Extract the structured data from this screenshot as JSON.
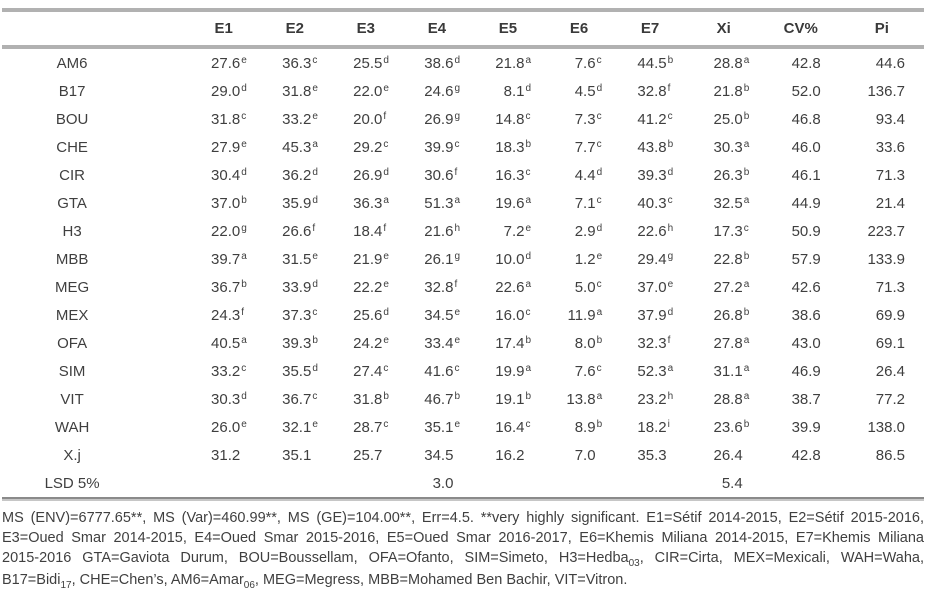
{
  "table": {
    "columns": [
      "E1",
      "E2",
      "E3",
      "E4",
      "E5",
      "E6",
      "E7",
      "Xi",
      "CV%",
      "Pi"
    ],
    "rows": [
      {
        "label": "AM6",
        "cells": [
          [
            "27.6",
            "e"
          ],
          [
            "36.3",
            "c"
          ],
          [
            "25.5",
            "d"
          ],
          [
            "38.6",
            "d"
          ],
          [
            "21.8",
            "a"
          ],
          [
            "7.6",
            "c"
          ],
          [
            "44.5",
            "b"
          ],
          [
            "28.8",
            "a"
          ],
          [
            "42.8",
            ""
          ],
          [
            "44.6",
            ""
          ]
        ]
      },
      {
        "label": "B17",
        "cells": [
          [
            "29.0",
            "d"
          ],
          [
            "31.8",
            "e"
          ],
          [
            "22.0",
            "e"
          ],
          [
            "24.6",
            "g"
          ],
          [
            "8.1",
            "d"
          ],
          [
            "4.5",
            "d"
          ],
          [
            "32.8",
            "f"
          ],
          [
            "21.8",
            "b"
          ],
          [
            "52.0",
            ""
          ],
          [
            "136.7",
            ""
          ]
        ]
      },
      {
        "label": "BOU",
        "cells": [
          [
            "31.8",
            "c"
          ],
          [
            "33.2",
            "e"
          ],
          [
            "20.0",
            "f"
          ],
          [
            "26.9",
            "g"
          ],
          [
            "14.8",
            "c"
          ],
          [
            "7.3",
            "c"
          ],
          [
            "41.2",
            "c"
          ],
          [
            "25.0",
            "b"
          ],
          [
            "46.8",
            ""
          ],
          [
            "93.4",
            ""
          ]
        ]
      },
      {
        "label": "CHE",
        "cells": [
          [
            "27.9",
            "e"
          ],
          [
            "45.3",
            "a"
          ],
          [
            "29.2",
            "c"
          ],
          [
            "39.9",
            "c"
          ],
          [
            "18.3",
            "b"
          ],
          [
            "7.7",
            "c"
          ],
          [
            "43.8",
            "b"
          ],
          [
            "30.3",
            "a"
          ],
          [
            "46.0",
            ""
          ],
          [
            "33.6",
            ""
          ]
        ]
      },
      {
        "label": "CIR",
        "cells": [
          [
            "30.4",
            "d"
          ],
          [
            "36.2",
            "d"
          ],
          [
            "26.9",
            "d"
          ],
          [
            "30.6",
            "f"
          ],
          [
            "16.3",
            "c"
          ],
          [
            "4.4",
            "d"
          ],
          [
            "39.3",
            "d"
          ],
          [
            "26.3",
            "b"
          ],
          [
            "46.1",
            ""
          ],
          [
            "71.3",
            ""
          ]
        ]
      },
      {
        "label": "GTA",
        "cells": [
          [
            "37.0",
            "b"
          ],
          [
            "35.9",
            "d"
          ],
          [
            "36.3",
            "a"
          ],
          [
            "51.3",
            "a"
          ],
          [
            "19.6",
            "a"
          ],
          [
            "7.1",
            "c"
          ],
          [
            "40.3",
            "c"
          ],
          [
            "32.5",
            "a"
          ],
          [
            "44.9",
            ""
          ],
          [
            "21.4",
            ""
          ]
        ]
      },
      {
        "label": "H3",
        "cells": [
          [
            "22.0",
            "g"
          ],
          [
            "26.6",
            "f"
          ],
          [
            "18.4",
            "f"
          ],
          [
            "21.6",
            "h"
          ],
          [
            "7.2",
            "e"
          ],
          [
            "2.9",
            "d"
          ],
          [
            "22.6",
            "h"
          ],
          [
            "17.3",
            "c"
          ],
          [
            "50.9",
            ""
          ],
          [
            "223.7",
            ""
          ]
        ]
      },
      {
        "label": "MBB",
        "cells": [
          [
            "39.7",
            "a"
          ],
          [
            "31.5",
            "e"
          ],
          [
            "21.9",
            "e"
          ],
          [
            "26.1",
            "g"
          ],
          [
            "10.0",
            "d"
          ],
          [
            "1.2",
            "e"
          ],
          [
            "29.4",
            "g"
          ],
          [
            "22.8",
            "b"
          ],
          [
            "57.9",
            ""
          ],
          [
            "133.9",
            ""
          ]
        ]
      },
      {
        "label": "MEG",
        "cells": [
          [
            "36.7",
            "b"
          ],
          [
            "33.9",
            "d"
          ],
          [
            "22.2",
            "e"
          ],
          [
            "32.8",
            "f"
          ],
          [
            "22.6",
            "a"
          ],
          [
            "5.0",
            "c"
          ],
          [
            "37.0",
            "e"
          ],
          [
            "27.2",
            "a"
          ],
          [
            "42.6",
            ""
          ],
          [
            "71.3",
            ""
          ]
        ]
      },
      {
        "label": "MEX",
        "cells": [
          [
            "24.3",
            "f"
          ],
          [
            "37.3",
            "c"
          ],
          [
            "25.6",
            "d"
          ],
          [
            "34.5",
            "e"
          ],
          [
            "16.0",
            "c"
          ],
          [
            "11.9",
            "a"
          ],
          [
            "37.9",
            "d"
          ],
          [
            "26.8",
            "b"
          ],
          [
            "38.6",
            ""
          ],
          [
            "69.9",
            ""
          ]
        ]
      },
      {
        "label": "OFA",
        "cells": [
          [
            "40.5",
            "a"
          ],
          [
            "39.3",
            "b"
          ],
          [
            "24.2",
            "e"
          ],
          [
            "33.4",
            "e"
          ],
          [
            "17.4",
            "b"
          ],
          [
            "8.0",
            "b"
          ],
          [
            "32.3",
            "f"
          ],
          [
            "27.8",
            "a"
          ],
          [
            "43.0",
            ""
          ],
          [
            "69.1",
            ""
          ]
        ]
      },
      {
        "label": "SIM",
        "cells": [
          [
            "33.2",
            "c"
          ],
          [
            "35.5",
            "d"
          ],
          [
            "27.4",
            "c"
          ],
          [
            "41.6",
            "c"
          ],
          [
            "19.9",
            "a"
          ],
          [
            "7.6",
            "c"
          ],
          [
            "52.3",
            "a"
          ],
          [
            "31.1",
            "a"
          ],
          [
            "46.9",
            ""
          ],
          [
            "26.4",
            ""
          ]
        ]
      },
      {
        "label": "VIT",
        "cells": [
          [
            "30.3",
            "d"
          ],
          [
            "36.7",
            "c"
          ],
          [
            "31.8",
            "b"
          ],
          [
            "46.7",
            "b"
          ],
          [
            "19.1",
            "b"
          ],
          [
            "13.8",
            "a"
          ],
          [
            "23.2",
            "h"
          ],
          [
            "28.8",
            "a"
          ],
          [
            "38.7",
            ""
          ],
          [
            "77.2",
            ""
          ]
        ]
      },
      {
        "label": "WAH",
        "cells": [
          [
            "26.0",
            "e"
          ],
          [
            "32.1",
            "e"
          ],
          [
            "28.7",
            "c"
          ],
          [
            "35.1",
            "e"
          ],
          [
            "16.4",
            "c"
          ],
          [
            "8.9",
            "b"
          ],
          [
            "18.2",
            "i"
          ],
          [
            "23.6",
            "b"
          ],
          [
            "39.9",
            ""
          ],
          [
            "138.0",
            ""
          ]
        ]
      },
      {
        "label": "X.j",
        "cells": [
          [
            "31.2",
            ""
          ],
          [
            "35.1",
            ""
          ],
          [
            "25.7",
            ""
          ],
          [
            "34.5",
            ""
          ],
          [
            "16.2",
            ""
          ],
          [
            "7.0",
            ""
          ],
          [
            "35.3",
            ""
          ],
          [
            "26.4",
            ""
          ],
          [
            "42.8",
            ""
          ],
          [
            "86.5",
            ""
          ]
        ]
      },
      {
        "label": "LSD 5%",
        "cells": [
          [
            "",
            ""
          ],
          [
            "",
            ""
          ],
          [
            "",
            ""
          ],
          [
            "3.0",
            ""
          ],
          [
            "",
            ""
          ],
          [
            "",
            ""
          ],
          [
            "",
            ""
          ],
          [
            "5.4",
            ""
          ],
          [
            "",
            ""
          ],
          [
            "",
            ""
          ]
        ]
      }
    ]
  },
  "footnote": {
    "lines": [
      {
        "justify": true,
        "segments": [
          {
            "t": "MS (ENV)=6777.65**, MS (Var)=460.99**, MS (GE)=104.00**, Err=4.5. **very highly significant. E1=Sétif 2014-2015, E2=Sétif 2015-2016,"
          }
        ]
      },
      {
        "justify": true,
        "segments": [
          {
            "t": "E3=Oued Smar 2014-2015, E4=Oued Smar 2015-2016, E5=Oued Smar 2016-2017, E6=Khemis Miliana 2014-2015, E7=Khemis Miliana"
          }
        ]
      },
      {
        "justify": true,
        "segments": [
          {
            "t": "2015-2016 GTA=Gaviota Durum, BOU=Boussellam, OFA=Ofanto, SIM=Simeto, H3=Hedba"
          },
          {
            "t": "03",
            "sub": true
          },
          {
            "t": ", CIR=Cirta, MEX=Mexicali, WAH=Waha,"
          }
        ]
      },
      {
        "justify": false,
        "segments": [
          {
            "t": "B17=Bidi"
          },
          {
            "t": "17",
            "sub": true
          },
          {
            "t": ", CHE=Chen’s, AM6=Amar"
          },
          {
            "t": "06",
            "sub": true
          },
          {
            "t": ", MEG=Megress, MBB=Mohamed Ben Bachir, VIT=Vitron."
          }
        ]
      }
    ]
  },
  "colors": {
    "text": "#3f3f3f",
    "rule_light": "#b1b1b1",
    "rule_dark": "#8a8a8a",
    "background": "#ffffff"
  }
}
